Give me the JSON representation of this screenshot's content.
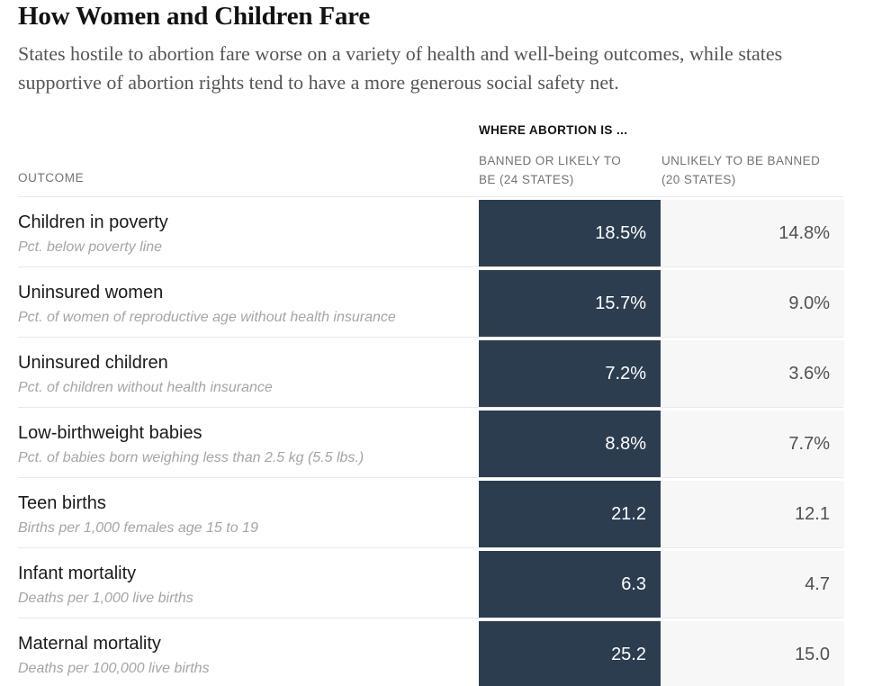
{
  "title": "How Women and Children Fare",
  "subtitle": "States hostile to abortion fare worse on a variety of health and well-being outcomes, while states supportive of abortion rights tend to have a more generous social safety net.",
  "table": {
    "outcome_header": "OUTCOME",
    "group_header": "WHERE ABORTION IS ...",
    "banned_header": "BANNED OR LIKELY TO BE (24 STATES)",
    "unlikely_header": "UNLIKELY TO BE BANNED (20 STATES)",
    "rows": [
      {
        "label": "Children in poverty",
        "sublabel": "Pct. below poverty line",
        "banned": "18.5%",
        "unlikely": "14.8%"
      },
      {
        "label": "Uninsured women",
        "sublabel": "Pct. of women of reproductive age without health insurance",
        "banned": "15.7%",
        "unlikely": "9.0%"
      },
      {
        "label": "Uninsured children",
        "sublabel": "Pct. of children without health insurance",
        "banned": "7.2%",
        "unlikely": "3.6%"
      },
      {
        "label": "Low-birthweight babies",
        "sublabel": "Pct. of babies born weighing less than 2.5 kg (5.5 lbs.)",
        "banned": "8.8%",
        "unlikely": "7.7%"
      },
      {
        "label": "Teen births",
        "sublabel": "Births per 1,000 females age 15 to 19",
        "banned": "21.2",
        "unlikely": "12.1"
      },
      {
        "label": "Infant mortality",
        "sublabel": "Deaths per 1,000 live births",
        "banned": "6.3",
        "unlikely": "4.7"
      },
      {
        "label": "Maternal mortality",
        "sublabel": "Deaths per 100,000 live births",
        "banned": "25.2",
        "unlikely": "15.0"
      }
    ]
  },
  "colors": {
    "banned_cell": "#2c3d50",
    "unlikely_cell": "#f7f7f7",
    "title_text": "#121212",
    "subtitle_text": "#555555",
    "header_text": "#737373",
    "row_rule": "#e9e9e9"
  },
  "chart_data": {
    "type": "table",
    "title": "How Women and Children Fare",
    "subtitle": "States hostile to abortion fare worse on a variety of health and well-being outcomes, while states supportive of abortion rights tend to have a more generous social safety net.",
    "column_group_label": "WHERE ABORTION IS ...",
    "columns": [
      "OUTCOME",
      "BANNED OR LIKELY TO BE (24 STATES)",
      "UNLIKELY TO BE BANNED (20 STATES)"
    ],
    "rows": [
      {
        "outcome": "Children in poverty",
        "description": "Pct. below poverty line",
        "banned_or_likely": 18.5,
        "unlikely_to_be_banned": 14.8,
        "unit": "%"
      },
      {
        "outcome": "Uninsured women",
        "description": "Pct. of women of reproductive age without health insurance",
        "banned_or_likely": 15.7,
        "unlikely_to_be_banned": 9.0,
        "unit": "%"
      },
      {
        "outcome": "Uninsured children",
        "description": "Pct. of children without health insurance",
        "banned_or_likely": 7.2,
        "unlikely_to_be_banned": 3.6,
        "unit": "%"
      },
      {
        "outcome": "Low-birthweight babies",
        "description": "Pct. of babies born weighing less than 2.5 kg (5.5 lbs.)",
        "banned_or_likely": 8.8,
        "unlikely_to_be_banned": 7.7,
        "unit": "%"
      },
      {
        "outcome": "Teen births",
        "description": "Births per 1,000 females age 15 to 19",
        "banned_or_likely": 21.2,
        "unlikely_to_be_banned": 12.1,
        "unit": "per 1,000"
      },
      {
        "outcome": "Infant mortality",
        "description": "Deaths per 1,000 live births",
        "banned_or_likely": 6.3,
        "unlikely_to_be_banned": 4.7,
        "unit": "per 1,000"
      },
      {
        "outcome": "Maternal mortality",
        "description": "Deaths per 100,000 live births",
        "banned_or_likely": 25.2,
        "unlikely_to_be_banned": 15.0,
        "unit": "per 100,000"
      }
    ],
    "layout_hints": {
      "highlight_column": "BANNED OR LIKELY TO BE (24 STATES)",
      "highlight_style": "dark navy cells, white text",
      "secondary_style": "light gray cells, gray text",
      "grid": "light horizontal rules between rows"
    }
  }
}
